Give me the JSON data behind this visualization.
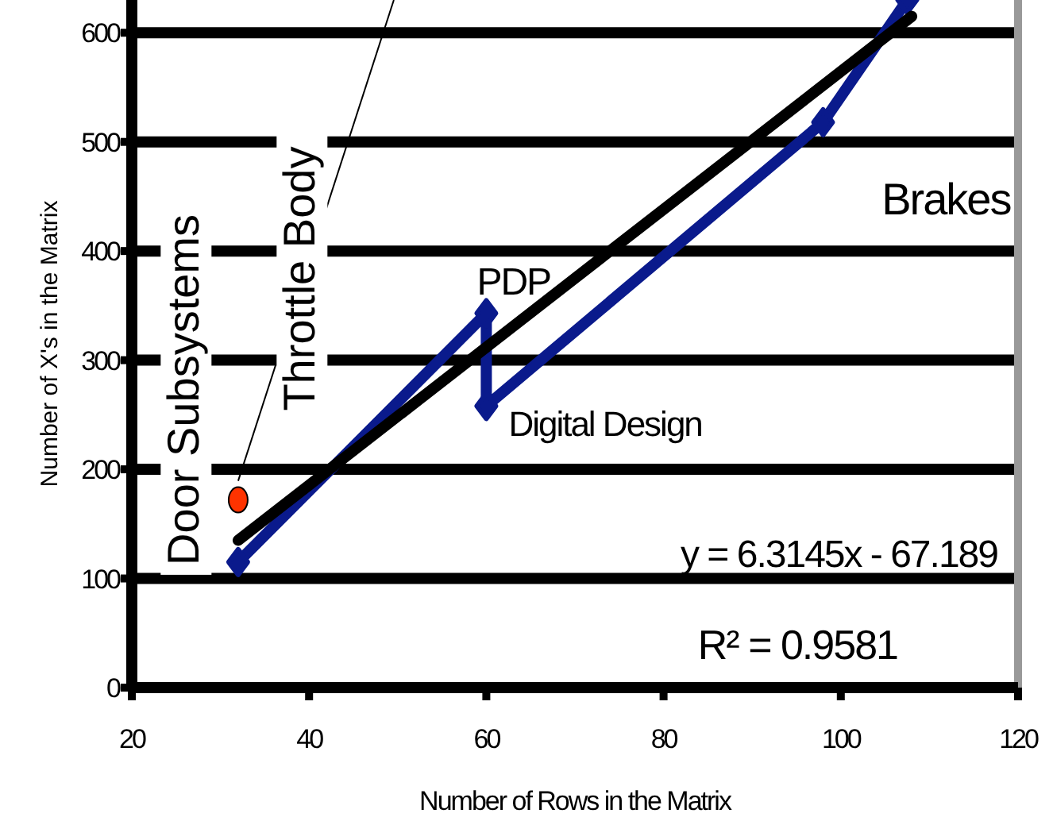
{
  "chart_data": {
    "type": "line",
    "xlabel": "Number of Rows in the Matrix",
    "ylabel": "Number of X's in the Matrix",
    "xlim": [
      20,
      120
    ],
    "xticks": [
      20,
      40,
      60,
      80,
      100,
      120
    ],
    "ylim": [
      0,
      630
    ],
    "yticks": [
      0,
      100,
      200,
      300,
      400,
      500,
      600
    ],
    "grid": "y",
    "series": [
      {
        "color": "#0a1a8c",
        "marker": "diamond",
        "x": [
          32,
          60,
          60,
          98,
          107.5
        ],
        "values": [
          115,
          343,
          258,
          518,
          630
        ]
      },
      {
        "color": "#000000",
        "marker": "none",
        "x": [
          32,
          108
        ],
        "values": [
          135,
          615
        ]
      },
      {
        "type": "scatter",
        "color": "#ff3300",
        "marker": "circle",
        "x": [
          32
        ],
        "values": [
          172
        ]
      }
    ],
    "annotations": [
      {
        "text": "Door Subsystems",
        "x": 32,
        "y": 115
      },
      {
        "text": "Throttle Body",
        "x": 32,
        "y": 172
      },
      {
        "text": "PDP",
        "x": 60,
        "y": 343
      },
      {
        "text": "Digital Design",
        "x": 60,
        "y": 258
      },
      {
        "text": "Brakes",
        "x": 98,
        "y": 518
      },
      "y = 6.3145x - 67.189",
      "R² = 0.9581"
    ]
  }
}
